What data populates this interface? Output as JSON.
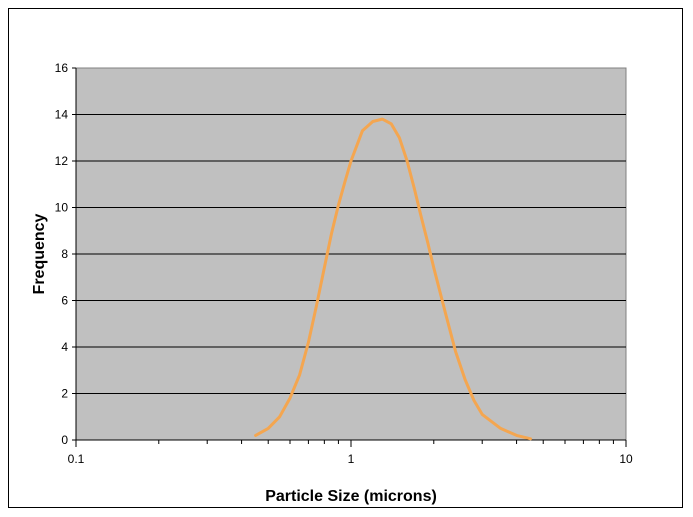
{
  "chart_data": {
    "type": "line",
    "title": "",
    "xlabel": "Particle Size (microns)",
    "ylabel": "Frequency",
    "x_scale": "log",
    "xlim": [
      0.1,
      10
    ],
    "ylim": [
      0,
      16
    ],
    "x_ticks": [
      "0.1",
      "1",
      "10"
    ],
    "y_ticks": [
      "0",
      "2",
      "4",
      "6",
      "8",
      "10",
      "12",
      "14",
      "16"
    ],
    "grid": "horizontal",
    "legend": "none",
    "plot_background": "#c0c0c0",
    "series": [
      {
        "color": "#f4a650",
        "x": [
          0.45,
          0.5,
          0.55,
          0.6,
          0.65,
          0.7,
          0.75,
          0.8,
          0.85,
          0.9,
          0.95,
          1.0,
          1.1,
          1.2,
          1.3,
          1.4,
          1.5,
          1.6,
          1.7,
          1.8,
          1.9,
          2.0,
          2.2,
          2.4,
          2.6,
          2.8,
          3.0,
          3.5,
          4.0,
          4.5
        ],
        "y": [
          0.2,
          0.5,
          1.0,
          1.8,
          2.8,
          4.2,
          5.8,
          7.4,
          8.9,
          10.1,
          11.1,
          12.0,
          13.3,
          13.7,
          13.8,
          13.6,
          13.0,
          12.0,
          10.8,
          9.6,
          8.5,
          7.4,
          5.5,
          3.8,
          2.6,
          1.7,
          1.1,
          0.5,
          0.2,
          0.05
        ]
      }
    ]
  }
}
